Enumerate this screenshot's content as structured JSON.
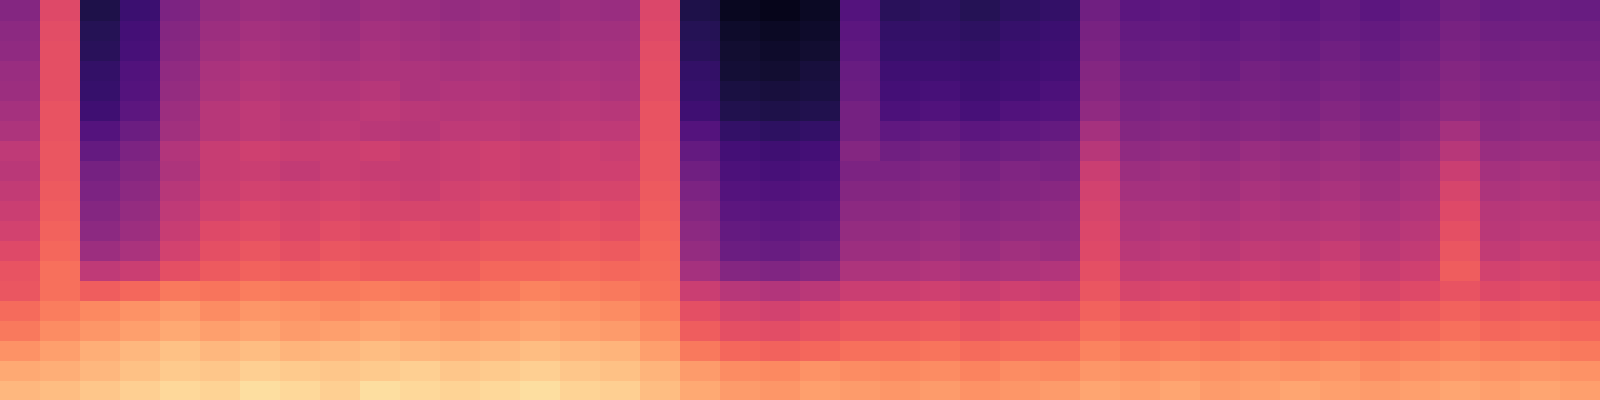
{
  "chart_data": {
    "type": "heatmap",
    "color": "magma",
    "tick_labels": false,
    "zlim": [
      0,
      100
    ],
    "cells": [
      [
        85,
        82,
        77,
        72,
        69,
        64,
        63,
        60,
        57,
        55,
        53,
        51,
        52,
        48,
        46,
        44,
        43,
        41,
        40,
        38
      ],
      [
        86,
        83,
        80,
        76,
        73,
        70,
        70,
        68,
        67,
        66,
        65,
        64,
        64,
        63,
        63,
        62,
        62,
        62,
        61,
        60
      ],
      [
        88,
        85,
        83,
        78,
        75,
        66,
        52,
        44,
        40,
        38,
        36,
        34,
        30,
        26,
        21,
        19,
        18,
        16,
        15,
        13
      ],
      [
        90,
        87,
        85,
        80,
        77,
        68,
        55,
        47,
        44,
        42,
        40,
        38,
        36,
        32,
        28,
        26,
        25,
        23,
        22,
        20
      ],
      [
        92,
        89,
        87,
        82,
        79,
        72,
        62,
        57,
        54,
        52,
        50,
        48,
        49,
        45,
        44,
        42,
        41,
        39,
        38,
        36
      ],
      [
        91,
        88,
        85,
        80,
        76,
        71,
        65,
        62,
        60,
        57,
        55,
        54,
        54,
        50,
        50,
        48,
        47,
        45,
        44,
        42
      ],
      [
        93,
        90,
        86,
        81,
        78,
        73,
        67,
        64,
        61,
        59,
        57,
        55,
        56,
        52,
        52,
        50,
        49,
        47,
        46,
        44
      ],
      [
        92,
        89,
        84,
        79,
        77,
        72,
        66,
        62,
        59,
        58,
        56,
        53,
        55,
        51,
        50,
        49,
        48,
        46,
        45,
        43
      ],
      [
        90,
        88,
        85,
        80,
        76,
        72,
        67,
        64,
        61,
        59,
        57,
        55,
        55,
        52,
        51,
        49,
        47,
        45,
        44,
        42
      ],
      [
        93,
        89,
        86,
        81,
        77,
        73,
        66,
        63,
        60,
        58,
        56,
        54,
        56,
        51,
        52,
        50,
        48,
        47,
        46,
        44
      ],
      [
        92,
        90,
        85,
        80,
        78,
        72,
        66,
        63,
        61,
        58,
        55,
        54,
        54,
        50,
        51,
        48,
        48,
        46,
        45,
        43
      ],
      [
        91,
        88,
        84,
        79,
        76,
        71,
        66,
        64,
        60,
        58,
        57,
        55,
        55,
        52,
        50,
        49,
        47,
        45,
        44,
        42
      ],
      [
        92,
        89,
        85,
        80,
        77,
        72,
        68,
        65,
        62,
        60,
        58,
        56,
        56,
        52,
        51,
        49,
        48,
        46,
        45,
        43
      ],
      [
        93,
        90,
        86,
        81,
        78,
        74,
        68,
        65,
        62,
        60,
        57,
        55,
        55,
        51,
        50,
        48,
        47,
        45,
        44,
        42
      ],
      [
        91,
        88,
        85,
        80,
        77,
        73,
        69,
        66,
        63,
        61,
        58,
        56,
        56,
        52,
        51,
        49,
        48,
        46,
        45,
        44
      ],
      [
        90,
        87,
        84,
        79,
        76,
        72,
        68,
        65,
        62,
        60,
        58,
        56,
        55,
        52,
        50,
        48,
        47,
        46,
        45,
        43
      ],
      [
        86,
        84,
        80,
        76,
        73,
        70,
        69,
        68,
        67,
        66,
        65,
        64,
        64,
        63,
        63,
        62,
        62,
        61,
        60,
        59
      ],
      [
        82,
        79,
        72,
        66,
        62,
        55,
        46,
        42,
        40,
        38,
        36,
        33,
        30,
        26,
        21,
        19,
        18,
        16,
        15,
        13
      ],
      [
        79,
        76,
        68,
        62,
        58,
        50,
        38,
        32,
        30,
        28,
        26,
        24,
        22,
        18,
        14,
        12,
        10,
        9,
        8,
        6
      ],
      [
        78,
        75,
        67,
        61,
        57,
        49,
        37,
        31,
        29,
        27,
        25,
        23,
        21,
        17,
        13,
        11,
        9,
        8,
        7,
        5
      ],
      [
        80,
        77,
        68,
        63,
        59,
        51,
        39,
        33,
        30,
        28,
        26,
        24,
        22,
        18,
        14,
        12,
        11,
        9,
        8,
        7
      ],
      [
        79,
        76,
        70,
        65,
        61,
        55,
        48,
        44,
        42,
        40,
        38,
        36,
        38,
        34,
        34,
        32,
        31,
        29,
        28,
        26
      ],
      [
        78,
        75,
        70,
        65,
        61,
        55,
        48,
        44,
        42,
        40,
        38,
        36,
        33,
        29,
        24,
        22,
        21,
        19,
        18,
        16
      ],
      [
        79,
        76,
        71,
        66,
        62,
        56,
        49,
        45,
        43,
        41,
        39,
        37,
        34,
        30,
        25,
        23,
        21,
        19,
        18,
        17
      ],
      [
        77,
        74,
        69,
        64,
        60,
        54,
        47,
        43,
        41,
        39,
        37,
        35,
        32,
        28,
        23,
        21,
        20,
        18,
        17,
        15
      ],
      [
        78,
        76,
        70,
        65,
        62,
        56,
        48,
        45,
        42,
        40,
        38,
        37,
        33,
        29,
        25,
        22,
        21,
        20,
        19,
        17
      ],
      [
        79,
        75,
        70,
        66,
        61,
        55,
        49,
        44,
        42,
        41,
        39,
        36,
        34,
        30,
        26,
        24,
        22,
        21,
        20,
        18
      ],
      [
        81,
        78,
        74,
        70,
        67,
        64,
        62,
        60,
        59,
        58,
        57,
        55,
        50,
        46,
        41,
        39,
        38,
        36,
        35,
        33
      ],
      [
        80,
        77,
        72,
        68,
        64,
        58,
        54,
        51,
        49,
        48,
        46,
        44,
        41,
        38,
        36,
        34,
        33,
        31,
        30,
        28
      ],
      [
        81,
        78,
        73,
        68,
        65,
        59,
        55,
        52,
        50,
        48,
        46,
        45,
        42,
        39,
        37,
        35,
        33,
        32,
        30,
        29
      ],
      [
        79,
        77,
        72,
        67,
        64,
        58,
        55,
        51,
        49,
        47,
        45,
        44,
        41,
        38,
        36,
        34,
        32,
        31,
        29,
        28
      ],
      [
        80,
        78,
        73,
        69,
        65,
        60,
        56,
        53,
        50,
        49,
        47,
        45,
        43,
        39,
        37,
        35,
        34,
        32,
        31,
        29
      ],
      [
        81,
        77,
        72,
        68,
        64,
        59,
        55,
        52,
        50,
        48,
        46,
        44,
        42,
        38,
        36,
        34,
        33,
        31,
        30,
        28
      ],
      [
        80,
        78,
        73,
        68,
        65,
        60,
        57,
        54,
        51,
        49,
        47,
        45,
        43,
        40,
        38,
        36,
        34,
        33,
        31,
        30
      ],
      [
        79,
        76,
        72,
        67,
        63,
        58,
        54,
        51,
        49,
        47,
        45,
        44,
        41,
        38,
        36,
        34,
        33,
        31,
        30,
        28
      ],
      [
        80,
        77,
        73,
        68,
        65,
        60,
        56,
        53,
        51,
        49,
        47,
        46,
        43,
        40,
        38,
        36,
        35,
        33,
        32,
        30
      ],
      [
        81,
        78,
        74,
        70,
        67,
        63,
        66,
        64,
        62,
        60,
        58,
        55,
        50,
        46,
        41,
        39,
        38,
        36,
        35,
        33
      ],
      [
        80,
        77,
        73,
        68,
        65,
        60,
        57,
        53,
        51,
        50,
        48,
        46,
        43,
        40,
        39,
        37,
        36,
        34,
        33,
        31
      ],
      [
        81,
        78,
        73,
        69,
        66,
        61,
        58,
        55,
        52,
        51,
        49,
        47,
        44,
        41,
        40,
        38,
        36,
        35,
        33,
        32
      ],
      [
        80,
        77,
        72,
        68,
        65,
        60,
        57,
        54,
        52,
        50,
        48,
        46,
        44,
        41,
        39,
        37,
        36,
        34,
        33,
        31
      ]
    ]
  }
}
